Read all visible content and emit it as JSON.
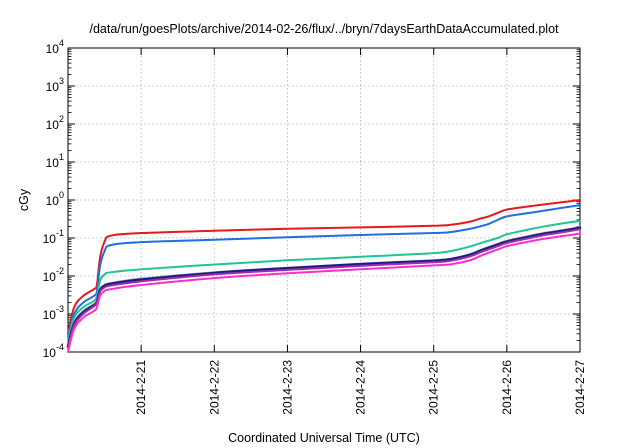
{
  "chart_data": {
    "type": "line",
    "title": "/data/run/goesPlots/archive/2014-02-26/flux/../bryn/7daysEarthDataAccumulated.plot",
    "xlabel": "Coordinated Universal Time (UTC)",
    "ylabel": "cGy",
    "y_scale": "log",
    "ylim": [
      0.0001,
      10000
    ],
    "y_ticks": [
      {
        "value": 0.0001,
        "base": "10",
        "exp": "-4"
      },
      {
        "value": 0.001,
        "base": "10",
        "exp": "-3"
      },
      {
        "value": 0.01,
        "base": "10",
        "exp": "-2"
      },
      {
        "value": 0.1,
        "base": "10",
        "exp": "-1"
      },
      {
        "value": 1,
        "base": "10",
        "exp": "0"
      },
      {
        "value": 10,
        "base": "10",
        "exp": "1"
      },
      {
        "value": 100,
        "base": "10",
        "exp": "2"
      },
      {
        "value": 1000,
        "base": "10",
        "exp": "3"
      },
      {
        "value": 10000,
        "base": "10",
        "exp": "4"
      }
    ],
    "xlim": [
      "2014-02-20",
      "2014-02-27"
    ],
    "x_ticks": [
      "2014-2-21",
      "2014-2-22",
      "2014-2-23",
      "2014-2-24",
      "2014-2-25",
      "2014-2-26",
      "2014-2-27"
    ],
    "grid": true,
    "legend": "none",
    "series": [
      {
        "color": "#e41a1c",
        "width": 2,
        "points": [
          [
            "2014-02-20 00:00",
            0.0003
          ],
          [
            "2014-02-20 02:00",
            0.0015
          ],
          [
            "2014-02-20 05:00",
            0.003
          ],
          [
            "2014-02-20 08:30",
            0.0045
          ],
          [
            "2014-02-20 09:30",
            0.006
          ],
          [
            "2014-02-20 10:30",
            0.03
          ],
          [
            "2014-02-20 12:00",
            0.08
          ],
          [
            "2014-02-20 14:00",
            0.115
          ],
          [
            "2014-02-21 00:00",
            0.135
          ],
          [
            "2014-02-22 00:00",
            0.155
          ],
          [
            "2014-02-23 00:00",
            0.175
          ],
          [
            "2014-02-24 00:00",
            0.19
          ],
          [
            "2014-02-25 00:00",
            0.21
          ],
          [
            "2014-02-25 06:00",
            0.225
          ],
          [
            "2014-02-25 12:00",
            0.27
          ],
          [
            "2014-02-25 15:00",
            0.32
          ],
          [
            "2014-02-25 18:00",
            0.37
          ],
          [
            "2014-02-25 21:00",
            0.46
          ],
          [
            "2014-02-26 00:00",
            0.56
          ],
          [
            "2014-02-26 06:00",
            0.66
          ],
          [
            "2014-02-26 12:00",
            0.76
          ],
          [
            "2014-02-26 18:00",
            0.87
          ],
          [
            "2014-02-27 00:00",
            1.0
          ]
        ]
      },
      {
        "color": "#1f6fe0",
        "width": 2,
        "points": [
          [
            "2014-02-20 00:00",
            0.00025
          ],
          [
            "2014-02-20 02:00",
            0.001
          ],
          [
            "2014-02-20 05:00",
            0.002
          ],
          [
            "2014-02-20 08:30",
            0.003
          ],
          [
            "2014-02-20 09:30",
            0.004
          ],
          [
            "2014-02-20 10:30",
            0.018
          ],
          [
            "2014-02-20 12:00",
            0.045
          ],
          [
            "2014-02-20 14:00",
            0.065
          ],
          [
            "2014-02-21 00:00",
            0.078
          ],
          [
            "2014-02-22 00:00",
            0.09
          ],
          [
            "2014-02-23 00:00",
            0.105
          ],
          [
            "2014-02-24 00:00",
            0.12
          ],
          [
            "2014-02-25 00:00",
            0.135
          ],
          [
            "2014-02-25 06:00",
            0.145
          ],
          [
            "2014-02-25 12:00",
            0.175
          ],
          [
            "2014-02-25 15:00",
            0.2
          ],
          [
            "2014-02-25 18:00",
            0.235
          ],
          [
            "2014-02-25 21:00",
            0.3
          ],
          [
            "2014-02-26 00:00",
            0.37
          ],
          [
            "2014-02-26 06:00",
            0.44
          ],
          [
            "2014-02-26 12:00",
            0.52
          ],
          [
            "2014-02-26 18:00",
            0.62
          ],
          [
            "2014-02-27 00:00",
            0.73
          ]
        ]
      },
      {
        "color": "#1fc493",
        "width": 2,
        "points": [
          [
            "2014-02-20 00:00",
            0.0002
          ],
          [
            "2014-02-20 02:00",
            0.0008
          ],
          [
            "2014-02-20 05:00",
            0.0015
          ],
          [
            "2014-02-20 08:30",
            0.0022
          ],
          [
            "2014-02-20 09:30",
            0.003
          ],
          [
            "2014-02-20 10:30",
            0.0075
          ],
          [
            "2014-02-20 12:00",
            0.011
          ],
          [
            "2014-02-20 14:00",
            0.0125
          ],
          [
            "2014-02-21 00:00",
            0.015
          ],
          [
            "2014-02-22 00:00",
            0.02
          ],
          [
            "2014-02-23 00:00",
            0.026
          ],
          [
            "2014-02-24 00:00",
            0.032
          ],
          [
            "2014-02-25 00:00",
            0.04
          ],
          [
            "2014-02-25 06:00",
            0.046
          ],
          [
            "2014-02-25 12:00",
            0.06
          ],
          [
            "2014-02-25 15:00",
            0.072
          ],
          [
            "2014-02-25 18:00",
            0.085
          ],
          [
            "2014-02-25 21:00",
            0.1
          ],
          [
            "2014-02-26 00:00",
            0.125
          ],
          [
            "2014-02-26 06:00",
            0.16
          ],
          [
            "2014-02-26 12:00",
            0.2
          ],
          [
            "2014-02-26 18:00",
            0.24
          ],
          [
            "2014-02-27 00:00",
            0.28
          ]
        ]
      },
      {
        "color": "#9a9a9a",
        "width": 2,
        "points": [
          [
            "2014-02-20 00:00",
            0.00015
          ],
          [
            "2014-02-20 02:00",
            0.0006
          ],
          [
            "2014-02-20 05:00",
            0.0012
          ],
          [
            "2014-02-20 08:30",
            0.0018
          ],
          [
            "2014-02-20 09:30",
            0.0022
          ],
          [
            "2014-02-20 10:30",
            0.0045
          ],
          [
            "2014-02-20 12:00",
            0.0058
          ],
          [
            "2014-02-20 14:00",
            0.0065
          ],
          [
            "2014-02-21 00:00",
            0.0085
          ],
          [
            "2014-02-22 00:00",
            0.0125
          ],
          [
            "2014-02-23 00:00",
            0.0165
          ],
          [
            "2014-02-24 00:00",
            0.021
          ],
          [
            "2014-02-25 00:00",
            0.026
          ],
          [
            "2014-02-25 06:00",
            0.029
          ],
          [
            "2014-02-25 12:00",
            0.038
          ],
          [
            "2014-02-25 15:00",
            0.047
          ],
          [
            "2014-02-25 18:00",
            0.058
          ],
          [
            "2014-02-25 21:00",
            0.07
          ],
          [
            "2014-02-26 00:00",
            0.085
          ],
          [
            "2014-02-26 06:00",
            0.108
          ],
          [
            "2014-02-26 12:00",
            0.135
          ],
          [
            "2014-02-26 18:00",
            0.16
          ],
          [
            "2014-02-27 00:00",
            0.195
          ]
        ]
      },
      {
        "color": "#1a1a8c",
        "width": 2.6,
        "points": [
          [
            "2014-02-20 00:00",
            0.00014
          ],
          [
            "2014-02-20 02:00",
            0.00055
          ],
          [
            "2014-02-20 05:00",
            0.0011
          ],
          [
            "2014-02-20 08:30",
            0.0017
          ],
          [
            "2014-02-20 09:30",
            0.0021
          ],
          [
            "2014-02-20 10:30",
            0.0042
          ],
          [
            "2014-02-20 12:00",
            0.0055
          ],
          [
            "2014-02-20 14:00",
            0.0062
          ],
          [
            "2014-02-21 00:00",
            0.008
          ],
          [
            "2014-02-22 00:00",
            0.012
          ],
          [
            "2014-02-23 00:00",
            0.016
          ],
          [
            "2014-02-24 00:00",
            0.0205
          ],
          [
            "2014-02-25 00:00",
            0.025
          ],
          [
            "2014-02-25 06:00",
            0.028
          ],
          [
            "2014-02-25 12:00",
            0.036
          ],
          [
            "2014-02-25 15:00",
            0.045
          ],
          [
            "2014-02-25 18:00",
            0.055
          ],
          [
            "2014-02-25 21:00",
            0.067
          ],
          [
            "2014-02-26 00:00",
            0.08
          ],
          [
            "2014-02-26 06:00",
            0.102
          ],
          [
            "2014-02-26 12:00",
            0.128
          ],
          [
            "2014-02-26 18:00",
            0.152
          ],
          [
            "2014-02-27 00:00",
            0.185
          ]
        ]
      },
      {
        "color": "#9b2fae",
        "width": 2,
        "points": [
          [
            "2014-02-20 00:00",
            0.00013
          ],
          [
            "2014-02-20 02:00",
            0.0005
          ],
          [
            "2014-02-20 05:00",
            0.001
          ],
          [
            "2014-02-20 08:30",
            0.0016
          ],
          [
            "2014-02-20 09:30",
            0.002
          ],
          [
            "2014-02-20 10:30",
            0.0038
          ],
          [
            "2014-02-20 12:00",
            0.005
          ],
          [
            "2014-02-20 14:00",
            0.0056
          ],
          [
            "2014-02-21 00:00",
            0.0072
          ],
          [
            "2014-02-22 00:00",
            0.011
          ],
          [
            "2014-02-23 00:00",
            0.0145
          ],
          [
            "2014-02-24 00:00",
            0.0185
          ],
          [
            "2014-02-25 00:00",
            0.023
          ],
          [
            "2014-02-25 06:00",
            0.0255
          ],
          [
            "2014-02-25 12:00",
            0.033
          ],
          [
            "2014-02-25 15:00",
            0.041
          ],
          [
            "2014-02-25 18:00",
            0.05
          ],
          [
            "2014-02-25 21:00",
            0.061
          ],
          [
            "2014-02-26 00:00",
            0.074
          ],
          [
            "2014-02-26 06:00",
            0.094
          ],
          [
            "2014-02-26 12:00",
            0.118
          ],
          [
            "2014-02-26 18:00",
            0.14
          ],
          [
            "2014-02-27 00:00",
            0.17
          ]
        ]
      },
      {
        "color": "#ff2ec8",
        "width": 2,
        "points": [
          [
            "2014-02-20 00:00",
            0.0001
          ],
          [
            "2014-02-20 02:00",
            0.0004
          ],
          [
            "2014-02-20 05:00",
            0.0008
          ],
          [
            "2014-02-20 08:30",
            0.0012
          ],
          [
            "2014-02-20 09:30",
            0.0015
          ],
          [
            "2014-02-20 10:30",
            0.003
          ],
          [
            "2014-02-20 12:00",
            0.004
          ],
          [
            "2014-02-20 14:00",
            0.0045
          ],
          [
            "2014-02-21 00:00",
            0.0058
          ],
          [
            "2014-02-22 00:00",
            0.0088
          ],
          [
            "2014-02-23 00:00",
            0.0118
          ],
          [
            "2014-02-24 00:00",
            0.015
          ],
          [
            "2014-02-25 00:00",
            0.019
          ],
          [
            "2014-02-25 06:00",
            0.0205
          ],
          [
            "2014-02-25 12:00",
            0.026
          ],
          [
            "2014-02-25 15:00",
            0.033
          ],
          [
            "2014-02-25 18:00",
            0.041
          ],
          [
            "2014-02-25 21:00",
            0.05
          ],
          [
            "2014-02-26 00:00",
            0.061
          ],
          [
            "2014-02-26 06:00",
            0.077
          ],
          [
            "2014-02-26 12:00",
            0.095
          ],
          [
            "2014-02-26 18:00",
            0.112
          ],
          [
            "2014-02-27 00:00",
            0.13
          ]
        ]
      }
    ]
  }
}
